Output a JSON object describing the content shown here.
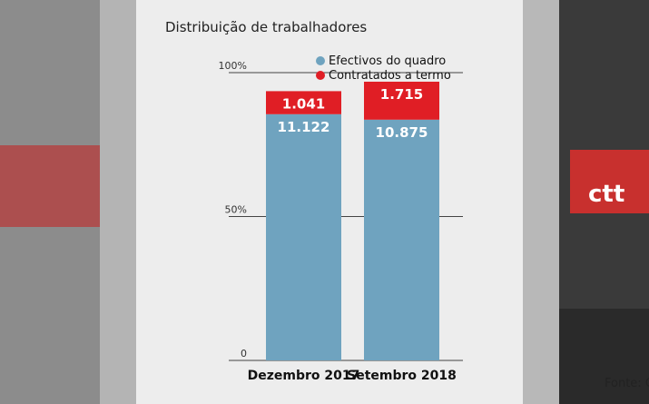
{
  "title": "Distribuição de trabalhadores",
  "source": "Fonte: C",
  "colors": {
    "efectivos": "#6fa3bf",
    "contratados": "#e01e25",
    "grid": "#444444"
  },
  "chart_data": {
    "type": "bar",
    "stacked": true,
    "title": "Distribuição de trabalhadores",
    "categories": [
      "Dezembro 2017",
      "Setembro 2018"
    ],
    "series": [
      {
        "name": "Efectivos do quadro",
        "values": [
          11122,
          10875
        ],
        "labels": [
          "11.122",
          "10.875"
        ]
      },
      {
        "name": "Contratados a termo",
        "values": [
          1041,
          1715
        ],
        "labels": [
          "1.041",
          "1.715"
        ]
      }
    ],
    "y_ticks": [
      "0",
      "50%",
      "100%"
    ],
    "ylim": [
      0,
      13000
    ],
    "legend": "top-right",
    "grid": true
  }
}
